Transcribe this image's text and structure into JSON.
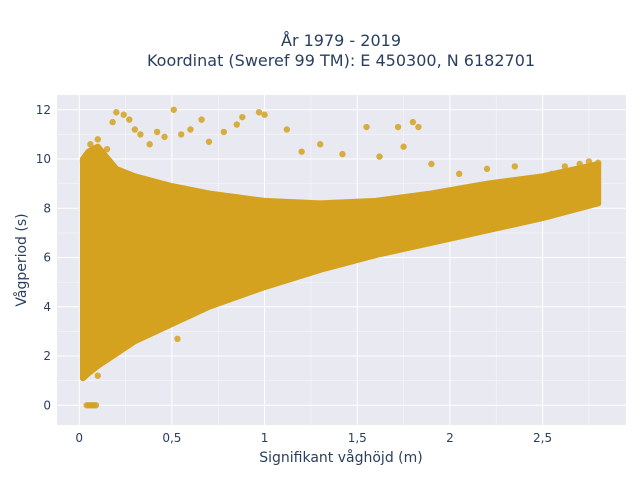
{
  "chart_data": {
    "type": "scatter",
    "title_line1": "År 1979 - 2019",
    "title_line2": "Koordinat (Sweref 99 TM): E 450300, N 6182701",
    "xlabel": "Signifikant våghöjd (m)",
    "ylabel": "Vågperiod (s)",
    "xlim": [
      -0.12,
      2.95
    ],
    "ylim": [
      -0.8,
      12.6
    ],
    "x_ticks": [
      {
        "value": 0,
        "label": "0"
      },
      {
        "value": 0.5,
        "label": "0,5"
      },
      {
        "value": 1,
        "label": "1"
      },
      {
        "value": 1.5,
        "label": "1,5"
      },
      {
        "value": 2,
        "label": "2"
      },
      {
        "value": 2.5,
        "label": "2,5"
      }
    ],
    "y_ticks": [
      {
        "value": 0,
        "label": "0"
      },
      {
        "value": 2,
        "label": "2"
      },
      {
        "value": 4,
        "label": "4"
      },
      {
        "value": 6,
        "label": "6"
      },
      {
        "value": 8,
        "label": "8"
      },
      {
        "value": 10,
        "label": "10"
      },
      {
        "value": 12,
        "label": "12"
      }
    ],
    "grid": true,
    "marker_color": "#d4a21f",
    "plot_background": "#e9e9f1",
    "envelope": {
      "x": [
        0.02,
        0.05,
        0.1,
        0.2,
        0.3,
        0.5,
        0.7,
        1.0,
        1.3,
        1.6,
        1.9,
        2.2,
        2.5,
        2.8
      ],
      "y_low": [
        1.1,
        1.3,
        1.6,
        2.1,
        2.6,
        3.3,
        4.0,
        4.8,
        5.5,
        6.1,
        6.6,
        7.1,
        7.6,
        8.2
      ],
      "y_high": [
        10.0,
        10.3,
        10.5,
        9.6,
        9.3,
        8.9,
        8.6,
        8.3,
        8.2,
        8.3,
        8.6,
        9.0,
        9.3,
        9.8
      ]
    },
    "points": [
      {
        "x": 0.04,
        "y": 0.0
      },
      {
        "x": 0.05,
        "y": 0.0
      },
      {
        "x": 0.06,
        "y": 0.0
      },
      {
        "x": 0.07,
        "y": 0.0
      },
      {
        "x": 0.08,
        "y": 0.0
      },
      {
        "x": 0.09,
        "y": 0.0
      },
      {
        "x": 0.02,
        "y": 9.9
      },
      {
        "x": 0.06,
        "y": 10.6
      },
      {
        "x": 0.1,
        "y": 10.8
      },
      {
        "x": 0.15,
        "y": 10.4
      },
      {
        "x": 0.18,
        "y": 11.5
      },
      {
        "x": 0.2,
        "y": 11.9
      },
      {
        "x": 0.24,
        "y": 11.8
      },
      {
        "x": 0.27,
        "y": 11.6
      },
      {
        "x": 0.3,
        "y": 11.2
      },
      {
        "x": 0.33,
        "y": 11.0
      },
      {
        "x": 0.38,
        "y": 10.6
      },
      {
        "x": 0.42,
        "y": 11.1
      },
      {
        "x": 0.46,
        "y": 10.9
      },
      {
        "x": 0.51,
        "y": 12.0
      },
      {
        "x": 0.55,
        "y": 11.0
      },
      {
        "x": 0.6,
        "y": 11.2
      },
      {
        "x": 0.66,
        "y": 11.6
      },
      {
        "x": 0.7,
        "y": 10.7
      },
      {
        "x": 0.78,
        "y": 11.1
      },
      {
        "x": 0.85,
        "y": 11.4
      },
      {
        "x": 0.88,
        "y": 11.7
      },
      {
        "x": 0.97,
        "y": 11.9
      },
      {
        "x": 1.0,
        "y": 11.8
      },
      {
        "x": 1.12,
        "y": 11.2
      },
      {
        "x": 1.2,
        "y": 10.3
      },
      {
        "x": 1.3,
        "y": 10.6
      },
      {
        "x": 1.42,
        "y": 10.2
      },
      {
        "x": 1.55,
        "y": 11.3
      },
      {
        "x": 1.62,
        "y": 10.1
      },
      {
        "x": 1.72,
        "y": 11.3
      },
      {
        "x": 1.8,
        "y": 11.5
      },
      {
        "x": 1.83,
        "y": 11.3
      },
      {
        "x": 1.75,
        "y": 10.5
      },
      {
        "x": 1.9,
        "y": 9.8
      },
      {
        "x": 2.05,
        "y": 9.4
      },
      {
        "x": 2.2,
        "y": 9.6
      },
      {
        "x": 2.35,
        "y": 9.7
      },
      {
        "x": 2.45,
        "y": 9.1
      },
      {
        "x": 2.55,
        "y": 9.4
      },
      {
        "x": 2.62,
        "y": 9.7
      },
      {
        "x": 2.7,
        "y": 9.8
      },
      {
        "x": 2.75,
        "y": 9.9
      },
      {
        "x": 2.8,
        "y": 9.85
      },
      {
        "x": 2.6,
        "y": 8.2
      },
      {
        "x": 2.7,
        "y": 8.8
      },
      {
        "x": 0.35,
        "y": 3.0
      },
      {
        "x": 0.53,
        "y": 2.7
      },
      {
        "x": 0.1,
        "y": 1.2
      },
      {
        "x": 0.05,
        "y": 1.5
      }
    ]
  }
}
